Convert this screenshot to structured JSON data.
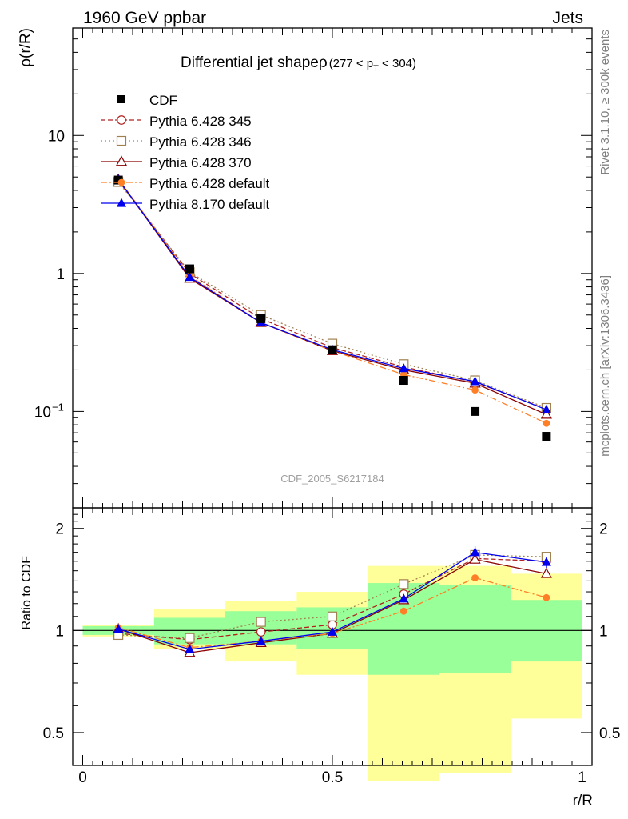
{
  "header": {
    "left": "1960 GeV ppbar",
    "right": "Jets",
    "side_top": "Rivet 3.1.10, ≥ 300k events",
    "side_bottom": "mcplots.cern.ch [arXiv:1306.3436]",
    "analysis_id": "CDF_2005_S6217184"
  },
  "chart_data": {
    "type": "line",
    "title": "Differential jet shapeρ",
    "title_cut": "(277 < p",
    "title_cut_sub": "T",
    "title_cut_end": " < 304)",
    "xlabel": "r/R",
    "ylabel": "ρ(r/R)",
    "ratio_ylabel": "Ratio to CDF",
    "xlim": [
      -0.02,
      1.02
    ],
    "ylim": [
      0.02,
      60
    ],
    "yscale": "log",
    "ratio_ylim": [
      0.4,
      2.3
    ],
    "ratio_yscale": "log",
    "x_ticks": [
      {
        "value": 0,
        "label": "0"
      },
      {
        "value": 0.5,
        "label": "0.5"
      },
      {
        "value": 1,
        "label": "1"
      }
    ],
    "y_ticks": [
      {
        "value": 10,
        "label": "10"
      },
      {
        "value": 1,
        "label": "1"
      },
      {
        "value": 0.1,
        "label": "10",
        "sup": "−1"
      }
    ],
    "ratio_ticks": [
      {
        "value": 2,
        "label": "2"
      },
      {
        "value": 1,
        "label": "1"
      },
      {
        "value": 0.5,
        "label": "0.5"
      }
    ],
    "x": [
      0.0714,
      0.2143,
      0.3571,
      0.5,
      0.6429,
      0.7857,
      0.9286
    ],
    "bin_edges": [
      0,
      0.1429,
      0.2857,
      0.4286,
      0.5714,
      0.7143,
      0.8571,
      1.0
    ],
    "data": {
      "name": "CDF",
      "values": [
        4.75,
        1.08,
        0.47,
        0.28,
        0.168,
        0.1,
        0.066
      ],
      "color": "#000000"
    },
    "series": [
      {
        "name": "Pythia 6.428 345",
        "color": "#b22222",
        "marker": "circle-open",
        "dash": "6,3",
        "values": [
          4.7,
          1.0,
          0.47,
          0.29,
          0.21,
          0.163,
          0.104
        ],
        "ratio": [
          0.98,
          0.94,
          0.99,
          1.04,
          1.28,
          1.63,
          1.6
        ],
        "ratio_err": [
          0.01,
          0.01,
          0.01,
          0.02,
          0.03,
          0.04,
          0.04
        ]
      },
      {
        "name": "Pythia 6.428 346",
        "color": "#a08050",
        "marker": "square-open",
        "dash": "2,3",
        "values": [
          4.6,
          1.02,
          0.5,
          0.31,
          0.22,
          0.168,
          0.106
        ],
        "ratio": [
          0.97,
          0.95,
          1.06,
          1.1,
          1.37,
          1.67,
          1.65
        ],
        "ratio_err": [
          0.01,
          0.01,
          0.01,
          0.02,
          0.03,
          0.04,
          0.04
        ]
      },
      {
        "name": "Pythia 6.428 370",
        "color": "#8b0000",
        "marker": "triangle-open",
        "dash": "",
        "values": [
          4.8,
          0.92,
          0.44,
          0.275,
          0.2,
          0.16,
          0.095
        ],
        "ratio": [
          1.01,
          0.86,
          0.92,
          0.98,
          1.23,
          1.62,
          1.47
        ],
        "ratio_err": [
          0.01,
          0.01,
          0.01,
          0.02,
          0.03,
          0.04,
          0.04
        ]
      },
      {
        "name": "Pythia 6.428 default",
        "color": "#ff7f27",
        "marker": "circle-filled",
        "dash": "8,3,2,3",
        "values": [
          4.85,
          0.96,
          0.44,
          0.275,
          0.185,
          0.143,
          0.082
        ],
        "ratio": [
          1.02,
          0.89,
          0.93,
          0.98,
          1.14,
          1.43,
          1.25
        ],
        "ratio_err": [
          0.01,
          0.01,
          0.01,
          0.02,
          0.02,
          0.03,
          0.03
        ]
      },
      {
        "name": "Pythia 8.170 default",
        "color": "#0000ee",
        "marker": "triangle-filled",
        "dash": "",
        "values": [
          4.8,
          0.94,
          0.44,
          0.28,
          0.205,
          0.165,
          0.103
        ],
        "ratio": [
          1.01,
          0.88,
          0.93,
          0.99,
          1.24,
          1.7,
          1.59
        ],
        "ratio_err": [
          0.01,
          0.01,
          0.01,
          0.02,
          0.03,
          0.07,
          0.06
        ]
      }
    ],
    "ratio_bands": {
      "stat_color": "#99ff99",
      "total_color": "#ffff99",
      "stat": [
        [
          0.97,
          1.03
        ],
        [
          0.91,
          1.09
        ],
        [
          0.91,
          1.14
        ],
        [
          0.88,
          1.17
        ],
        [
          0.74,
          1.38
        ],
        [
          0.75,
          1.36
        ],
        [
          0.81,
          1.23
        ]
      ],
      "total": [
        [
          0.96,
          1.04
        ],
        [
          0.88,
          1.16
        ],
        [
          0.81,
          1.22
        ],
        [
          0.74,
          1.3
        ],
        [
          0.36,
          1.55
        ],
        [
          0.38,
          1.55
        ],
        [
          0.55,
          1.47
        ]
      ]
    }
  }
}
